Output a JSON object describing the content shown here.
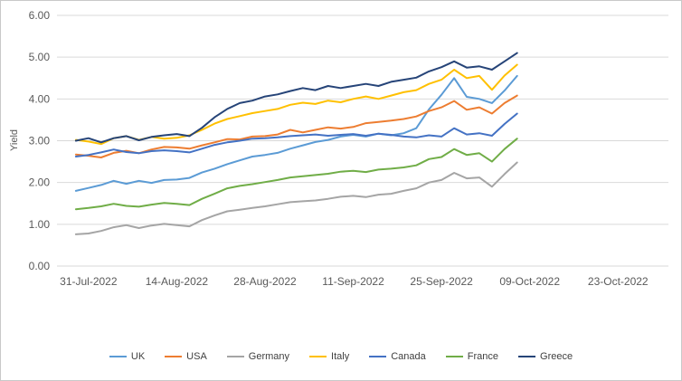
{
  "chart_data": {
    "type": "line",
    "title": "",
    "ylabel": "Yield",
    "ylim": [
      0,
      6
    ],
    "grid": true,
    "legend_position": "bottom",
    "y_tick_labels": [
      "0.00",
      "1.00",
      "2.00",
      "3.00",
      "4.00",
      "5.00",
      "6.00"
    ],
    "x_axis": {
      "day_min": -5,
      "day_max": 92,
      "ticks": [
        {
          "day": 0,
          "label": "31-Jul-2022"
        },
        {
          "day": 14,
          "label": "14-Aug-2022"
        },
        {
          "day": 28,
          "label": "28-Aug-2022"
        },
        {
          "day": 42,
          "label": "11-Sep-2022"
        },
        {
          "day": 56,
          "label": "25-Sep-2022"
        },
        {
          "day": 70,
          "label": "09-Oct-2022"
        },
        {
          "day": 84,
          "label": "23-Oct-2022"
        }
      ]
    },
    "points_day_start": -2,
    "points_day_step": 2,
    "series": [
      {
        "name": "UK",
        "color": "#5B9BD5",
        "values": [
          1.8,
          1.87,
          1.94,
          2.04,
          1.97,
          2.04,
          1.99,
          2.06,
          2.07,
          2.11,
          2.24,
          2.33,
          2.44,
          2.53,
          2.62,
          2.66,
          2.71,
          2.81,
          2.89,
          2.97,
          3.02,
          3.1,
          3.14,
          3.1,
          3.17,
          3.13,
          3.18,
          3.3,
          3.75,
          4.1,
          4.5,
          4.05,
          4.0,
          3.9,
          4.2,
          4.55
        ]
      },
      {
        "name": "USA",
        "color": "#ED7D31",
        "values": [
          2.67,
          2.64,
          2.6,
          2.71,
          2.76,
          2.7,
          2.79,
          2.85,
          2.84,
          2.81,
          2.89,
          2.96,
          3.04,
          3.03,
          3.1,
          3.11,
          3.15,
          3.26,
          3.2,
          3.26,
          3.32,
          3.29,
          3.33,
          3.42,
          3.45,
          3.48,
          3.52,
          3.58,
          3.71,
          3.8,
          3.95,
          3.74,
          3.8,
          3.65,
          3.9,
          4.08
        ]
      },
      {
        "name": "Germany",
        "color": "#A5A5A5",
        "values": [
          0.76,
          0.78,
          0.84,
          0.93,
          0.98,
          0.91,
          0.97,
          1.01,
          0.98,
          0.95,
          1.1,
          1.21,
          1.31,
          1.35,
          1.39,
          1.43,
          1.48,
          1.53,
          1.55,
          1.57,
          1.61,
          1.66,
          1.68,
          1.65,
          1.71,
          1.73,
          1.8,
          1.86,
          2.0,
          2.06,
          2.23,
          2.1,
          2.12,
          1.9,
          2.2,
          2.48
        ]
      },
      {
        "name": "Italy",
        "color": "#FFC000",
        "values": [
          3.02,
          2.98,
          2.92,
          3.06,
          3.11,
          3.02,
          3.09,
          3.05,
          3.07,
          3.13,
          3.26,
          3.41,
          3.52,
          3.59,
          3.66,
          3.71,
          3.76,
          3.86,
          3.91,
          3.88,
          3.96,
          3.92,
          4.0,
          4.06,
          4.0,
          4.08,
          4.16,
          4.21,
          4.36,
          4.46,
          4.7,
          4.5,
          4.55,
          4.22,
          4.56,
          4.82
        ]
      },
      {
        "name": "Canada",
        "color": "#4472C4",
        "values": [
          2.62,
          2.66,
          2.72,
          2.79,
          2.73,
          2.7,
          2.75,
          2.77,
          2.75,
          2.72,
          2.81,
          2.9,
          2.96,
          3.0,
          3.05,
          3.06,
          3.08,
          3.11,
          3.13,
          3.15,
          3.12,
          3.14,
          3.16,
          3.12,
          3.17,
          3.14,
          3.1,
          3.08,
          3.13,
          3.1,
          3.3,
          3.15,
          3.18,
          3.12,
          3.4,
          3.65
        ]
      },
      {
        "name": "France",
        "color": "#70AD47",
        "values": [
          1.36,
          1.39,
          1.43,
          1.49,
          1.44,
          1.42,
          1.47,
          1.51,
          1.49,
          1.46,
          1.61,
          1.73,
          1.86,
          1.92,
          1.96,
          2.01,
          2.06,
          2.12,
          2.15,
          2.18,
          2.21,
          2.26,
          2.28,
          2.25,
          2.31,
          2.33,
          2.36,
          2.41,
          2.56,
          2.61,
          2.8,
          2.66,
          2.7,
          2.5,
          2.8,
          3.05
        ]
      },
      {
        "name": "Greece",
        "color": "#264478",
        "values": [
          3.0,
          3.06,
          2.96,
          3.06,
          3.11,
          3.01,
          3.09,
          3.13,
          3.16,
          3.11,
          3.31,
          3.56,
          3.76,
          3.9,
          3.96,
          4.06,
          4.11,
          4.19,
          4.26,
          4.21,
          4.31,
          4.26,
          4.31,
          4.36,
          4.31,
          4.41,
          4.46,
          4.51,
          4.66,
          4.76,
          4.9,
          4.75,
          4.78,
          4.7,
          4.9,
          5.1
        ]
      }
    ],
    "style": {
      "gridline_color": "#D9D9D9",
      "tick_label_color": "#595959",
      "legend_label_color": "#404040"
    }
  }
}
